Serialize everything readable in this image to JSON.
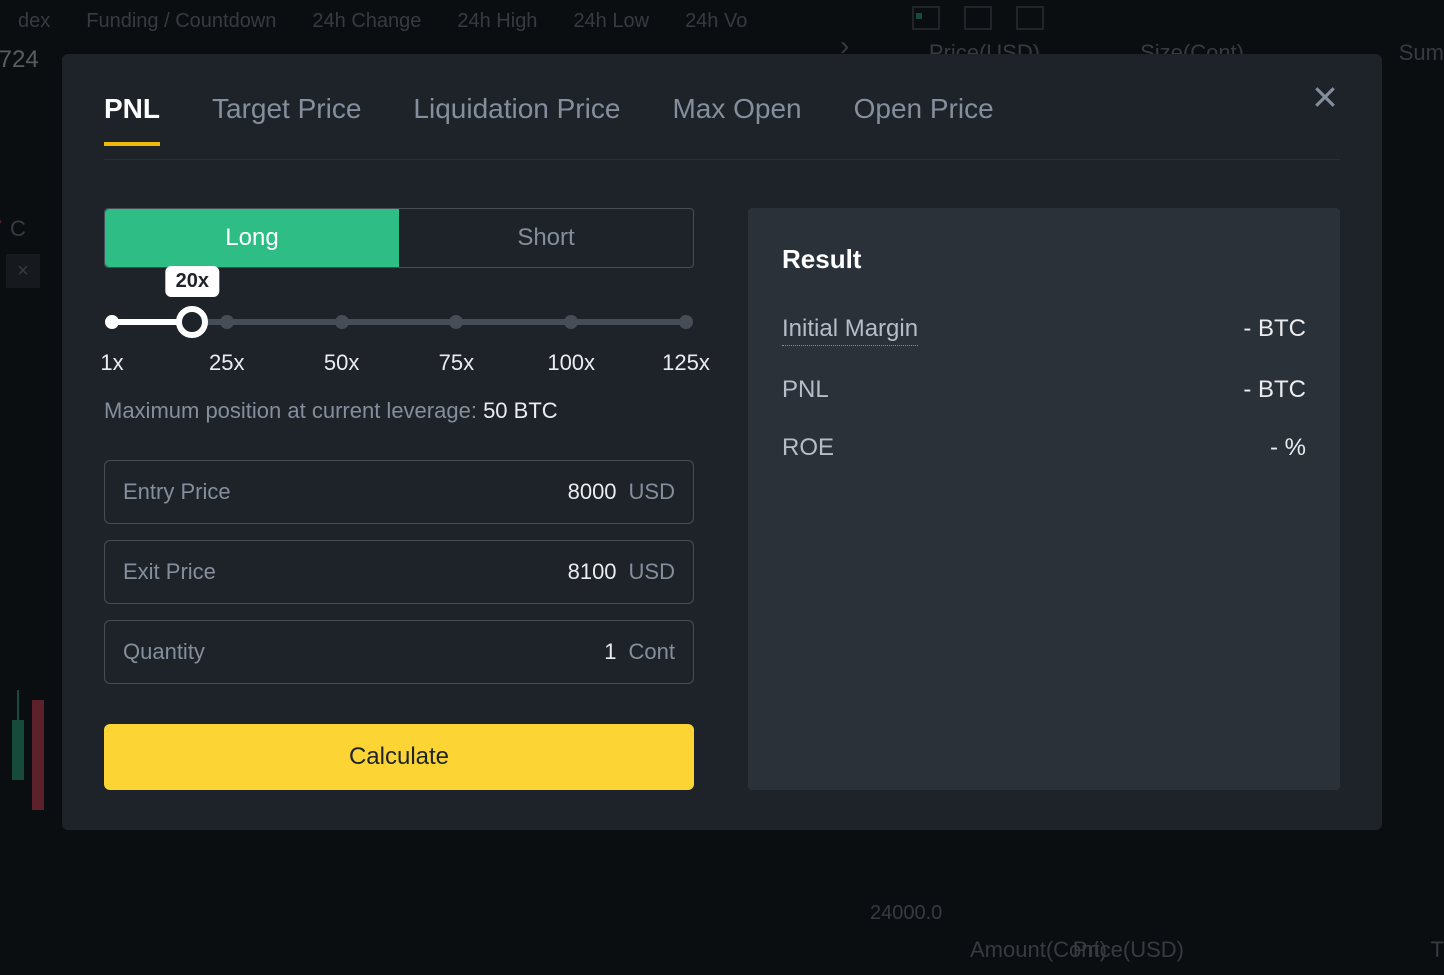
{
  "background": {
    "topLabels": [
      "dex",
      "Funding / Countdown",
      "24h Change",
      "24h High",
      "24h Low",
      "24h Vo"
    ],
    "partialNumber": ",724",
    "priceHeader": "Price(USD)",
    "sizeHeader": "Size(Cont)",
    "sumHeader": "Sum",
    "seven": "7",
    "cLetter": "C",
    "closeX": "×",
    "bottomPrice": "Price(USD)",
    "bottomAmount": "Amount(Cont)",
    "val24000": "24000.0",
    "tLetter": "T"
  },
  "tabs": {
    "pnl": "PNL",
    "target": "Target Price",
    "liq": "Liquidation Price",
    "maxopen": "Max Open",
    "openprice": "Open Price",
    "active": "pnl"
  },
  "toggle": {
    "long": "Long",
    "short": "Short",
    "active": "long"
  },
  "slider": {
    "value": "20x",
    "valuePercent": 14,
    "ticks": [
      {
        "pct": 0,
        "label": "1x"
      },
      {
        "pct": 20,
        "label": "25x"
      },
      {
        "pct": 40,
        "label": "50x"
      },
      {
        "pct": 60,
        "label": "75x"
      },
      {
        "pct": 80,
        "label": "100x"
      },
      {
        "pct": 100,
        "label": "125x"
      }
    ],
    "maxPosition": {
      "prefix": "Maximum position at current leverage: ",
      "value": "50",
      "unit": " BTC"
    }
  },
  "fields": {
    "entry": {
      "label": "Entry Price",
      "value": "8000",
      "unit": "USD"
    },
    "exit": {
      "label": "Exit Price",
      "value": "8100",
      "unit": "USD"
    },
    "quantity": {
      "label": "Quantity",
      "value": "1",
      "unit": "Cont"
    }
  },
  "calcLabel": "Calculate",
  "result": {
    "title": "Result",
    "rows": [
      {
        "k": "Initial Margin",
        "v": "- BTC",
        "dotted": true
      },
      {
        "k": "PNL",
        "v": "- BTC",
        "dotted": false
      },
      {
        "k": "ROE",
        "v": "- %",
        "dotted": false
      }
    ]
  },
  "colors": {
    "modalBg": "#1e2329",
    "panelBg": "#2b3139",
    "accent": "#f0b90b",
    "button": "#fcd535",
    "long": "#2ebd85",
    "textMuted": "#848e9c",
    "text": "#eaecef",
    "border": "#474d57"
  }
}
